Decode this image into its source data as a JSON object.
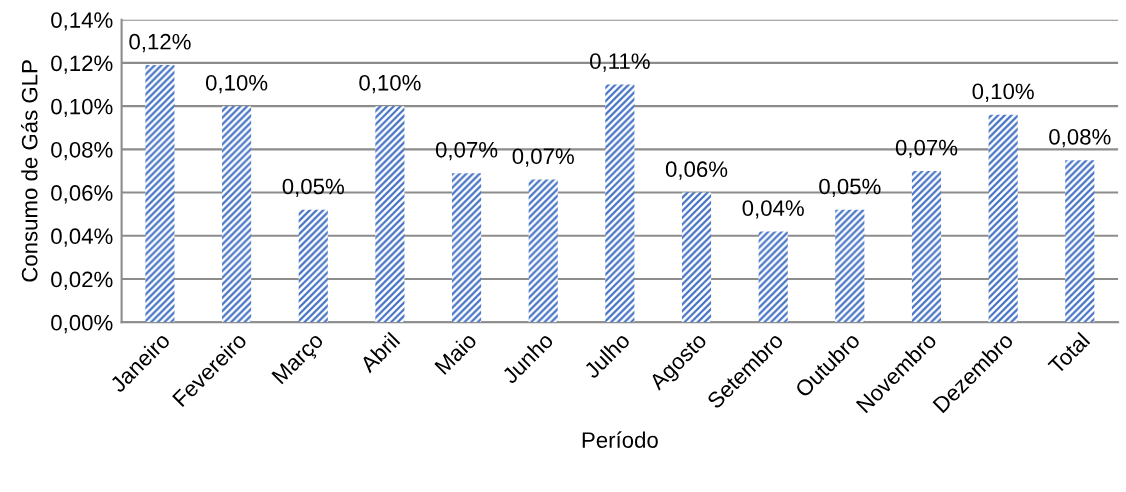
{
  "chart_data": {
    "type": "bar",
    "xlabel": "Período",
    "ylabel": "Consumo de Gás GLP",
    "categories": [
      "Janeiro",
      "Fevereiro",
      "Março",
      "Abril",
      "Maio",
      "Junho",
      "Julho",
      "Agosto",
      "Setembro",
      "Outubro",
      "Novembro",
      "Dezembro",
      "Total"
    ],
    "values": [
      0.119,
      0.1,
      0.052,
      0.1,
      0.069,
      0.066,
      0.11,
      0.06,
      0.042,
      0.052,
      0.07,
      0.096,
      0.075
    ],
    "value_labels": [
      "0,12%",
      "0,10%",
      "0,05%",
      "0,10%",
      "0,07%",
      "0,07%",
      "0,11%",
      "0,06%",
      "0,04%",
      "0,05%",
      "0,07%",
      "0,10%",
      "0,08%"
    ],
    "color": "#4472c4",
    "ylim": [
      0,
      0.14
    ],
    "yticks": [
      {
        "value": 0,
        "label": "0,00%"
      },
      {
        "value": 0.02,
        "label": "0,02%"
      },
      {
        "value": 0.04,
        "label": "0,04%"
      },
      {
        "value": 0.06,
        "label": "0,06%"
      },
      {
        "value": 0.08,
        "label": "0,08%"
      },
      {
        "value": 0.1,
        "label": "0,10%"
      },
      {
        "value": 0.12,
        "label": "0,12%"
      },
      {
        "value": 0.14,
        "label": "0,14%"
      }
    ],
    "grid": "y",
    "legend": false
  }
}
